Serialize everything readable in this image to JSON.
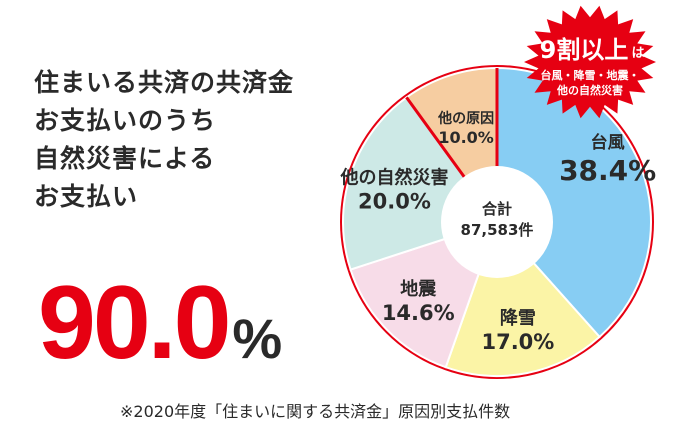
{
  "heading": {
    "lines": [
      "住まいる共済の共済金",
      "お支払いのうち",
      "自然災害による",
      "お支払い"
    ]
  },
  "highlight": {
    "value": "90.0",
    "unit": "%"
  },
  "footnote": "※2020年度「住まいに関する共済金」原因別支払件数",
  "badge": {
    "main": "9割以上",
    "suffix": "は",
    "line1": "台風・降雪・地震・",
    "line2": "他の自然災害"
  },
  "chart_data": {
    "type": "pie",
    "center_label": [
      "合計",
      "87,583件"
    ],
    "slices": [
      {
        "name": "台風",
        "value": 38.4,
        "label": "38.4%",
        "color": "#87cdf3"
      },
      {
        "name": "降雪",
        "value": 17.0,
        "label": "17.0%",
        "color": "#fbf4a6"
      },
      {
        "name": "地震",
        "value": 14.6,
        "label": "14.6%",
        "color": "#f7dce8"
      },
      {
        "name": "他の自然災害",
        "value": 20.0,
        "label": "20.0%",
        "color": "#cde9e6"
      },
      {
        "name": "他の原因",
        "value": 10.0,
        "label": "10.0%",
        "color": "#f6cda1"
      }
    ],
    "outline_color": "#e60012"
  }
}
